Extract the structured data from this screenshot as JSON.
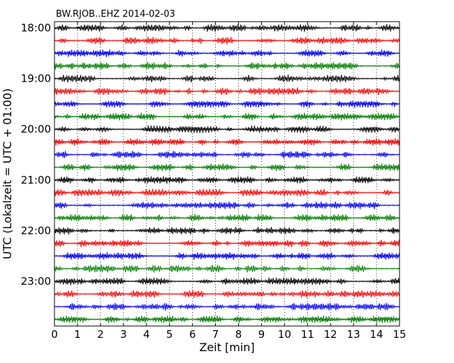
{
  "chart_data": {
    "type": "line",
    "title": "BW.RJOB..EHZ 2014-02-03",
    "xlabel": "Zeit  [min]",
    "ylabel": "UTC (Lokalzeit = UTC + 01:00)",
    "xlim": [
      0,
      15
    ],
    "x_ticks": [
      "0",
      "1",
      "2",
      "3",
      "4",
      "5",
      "6",
      "7",
      "8",
      "9",
      "10",
      "11",
      "12",
      "13",
      "14",
      "15"
    ],
    "y_ticks": [
      "18:00",
      "19:00",
      "20:00",
      "21:00",
      "22:00",
      "23:00"
    ],
    "grid": "vertical dotted",
    "trace_interval_min": 15,
    "trace_count": 24,
    "trace_colors": [
      "#000000",
      "#ff0000",
      "#0000ff",
      "#008000"
    ]
  }
}
